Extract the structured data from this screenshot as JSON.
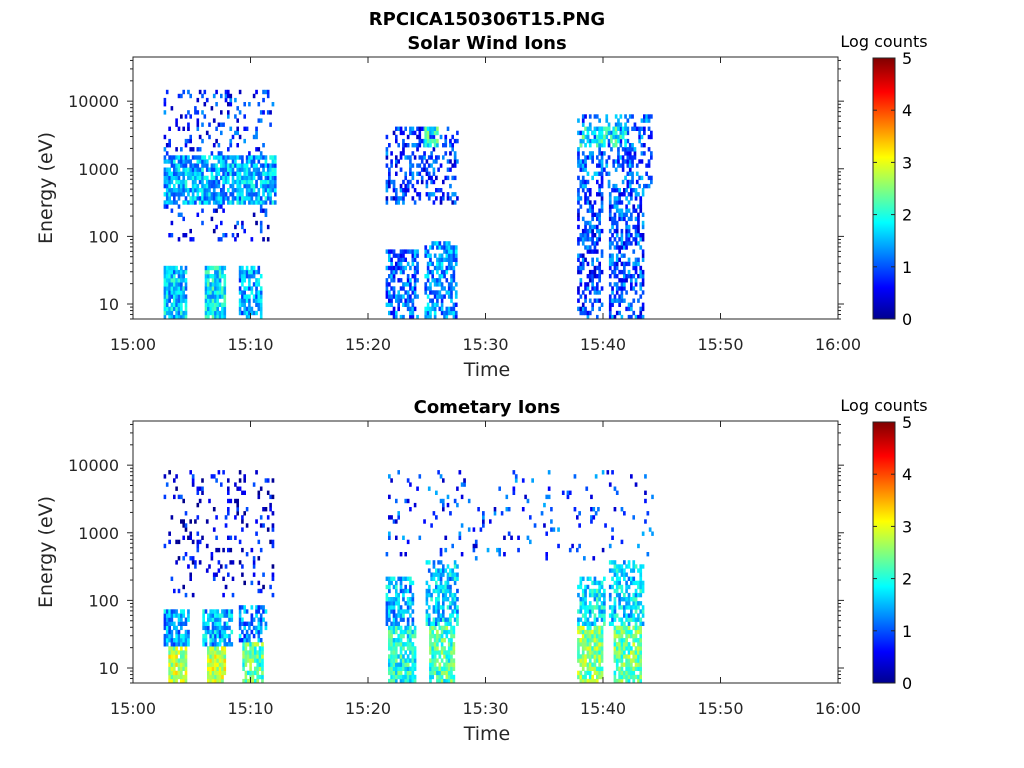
{
  "figure": {
    "title": "RPCICA150306T15.PNG"
  },
  "chart_data": [
    {
      "type": "heatmap",
      "title": "Solar Wind Ions",
      "xlabel": "Time",
      "ylabel": "Energy (eV)",
      "x_tick_labels": [
        "15:00",
        "15:10",
        "15:20",
        "15:30",
        "15:40",
        "15:50",
        "16:00"
      ],
      "x_range_minutes": [
        0,
        60
      ],
      "y_scale": "log",
      "y_tick_labels": [
        "10",
        "100",
        "1000",
        "10000"
      ],
      "y_ticks": [
        10,
        100,
        1000,
        10000
      ],
      "y_range": [
        6,
        45000
      ],
      "colorbar": {
        "label": "Log counts",
        "range": [
          0,
          5
        ],
        "ticks": [
          "0",
          "1",
          "2",
          "3",
          "4",
          "5"
        ],
        "colormap": "jet"
      },
      "grid": false,
      "blobs": [
        {
          "t0": 2.6,
          "t1": 4.6,
          "e0": 6,
          "e1": 35,
          "v": 1.6,
          "d": 0.9
        },
        {
          "t0": 6.1,
          "t1": 7.9,
          "e0": 6,
          "e1": 35,
          "v": 1.8,
          "d": 0.9
        },
        {
          "t0": 9.0,
          "t1": 10.8,
          "e0": 6,
          "e1": 35,
          "v": 1.4,
          "d": 0.7
        },
        {
          "t0": 2.6,
          "t1": 12.0,
          "e0": 300,
          "e1": 1500,
          "v": 1.5,
          "d": 0.8
        },
        {
          "t0": 2.6,
          "t1": 11.8,
          "e0": 1500,
          "e1": 15000,
          "v": 0.8,
          "d": 0.18
        },
        {
          "t0": 2.6,
          "t1": 11.8,
          "e0": 80,
          "e1": 300,
          "v": 0.7,
          "d": 0.12
        },
        {
          "t0": 21.5,
          "t1": 24.2,
          "e0": 6,
          "e1": 60,
          "v": 1.1,
          "d": 0.6
        },
        {
          "t0": 24.8,
          "t1": 27.5,
          "e0": 6,
          "e1": 80,
          "v": 1.3,
          "d": 0.6
        },
        {
          "t0": 21.5,
          "t1": 27.5,
          "e0": 300,
          "e1": 4000,
          "v": 0.9,
          "d": 0.35
        },
        {
          "t0": 24.8,
          "t1": 25.8,
          "e0": 2000,
          "e1": 4000,
          "v": 2.0,
          "d": 0.8
        },
        {
          "t0": 37.8,
          "t1": 40.0,
          "e0": 6,
          "e1": 500,
          "v": 0.9,
          "d": 0.5
        },
        {
          "t0": 40.5,
          "t1": 43.5,
          "e0": 6,
          "e1": 500,
          "v": 1.0,
          "d": 0.5
        },
        {
          "t0": 37.8,
          "t1": 44.2,
          "e0": 500,
          "e1": 6000,
          "v": 1.1,
          "d": 0.35
        },
        {
          "t0": 38.0,
          "t1": 42.0,
          "e0": 2000,
          "e1": 4000,
          "v": 2.0,
          "d": 0.6
        }
      ]
    },
    {
      "type": "heatmap",
      "title": "Cometary Ions",
      "xlabel": "Time",
      "ylabel": "Energy (eV)",
      "x_tick_labels": [
        "15:00",
        "15:10",
        "15:20",
        "15:30",
        "15:40",
        "15:50",
        "16:00"
      ],
      "x_range_minutes": [
        0,
        60
      ],
      "y_scale": "log",
      "y_tick_labels": [
        "10",
        "100",
        "1000",
        "10000"
      ],
      "y_ticks": [
        10,
        100,
        1000,
        10000
      ],
      "y_range": [
        6,
        45000
      ],
      "colorbar": {
        "label": "Log counts",
        "range": [
          0,
          5
        ],
        "ticks": [
          "0",
          "1",
          "2",
          "3",
          "4",
          "5"
        ],
        "colormap": "jet"
      },
      "grid": false,
      "blobs": [
        {
          "t0": 3.0,
          "t1": 4.6,
          "e0": 6,
          "e1": 20,
          "v": 2.8,
          "d": 0.95
        },
        {
          "t0": 2.6,
          "t1": 4.8,
          "e0": 20,
          "e1": 70,
          "v": 1.4,
          "d": 0.8
        },
        {
          "t0": 6.3,
          "t1": 7.9,
          "e0": 6,
          "e1": 20,
          "v": 2.8,
          "d": 0.95
        },
        {
          "t0": 5.9,
          "t1": 8.4,
          "e0": 20,
          "e1": 70,
          "v": 1.5,
          "d": 0.8
        },
        {
          "t0": 9.3,
          "t1": 10.9,
          "e0": 6,
          "e1": 25,
          "v": 2.3,
          "d": 0.85
        },
        {
          "t0": 9.0,
          "t1": 11.3,
          "e0": 25,
          "e1": 90,
          "v": 1.3,
          "d": 0.6
        },
        {
          "t0": 2.6,
          "t1": 11.8,
          "e0": 120,
          "e1": 8000,
          "v": 0.5,
          "d": 0.12
        },
        {
          "t0": 21.7,
          "t1": 23.9,
          "e0": 6,
          "e1": 40,
          "v": 2.0,
          "d": 0.85
        },
        {
          "t0": 21.5,
          "t1": 23.8,
          "e0": 40,
          "e1": 220,
          "v": 1.5,
          "d": 0.6
        },
        {
          "t0": 25.2,
          "t1": 27.2,
          "e0": 6,
          "e1": 40,
          "v": 2.2,
          "d": 0.85
        },
        {
          "t0": 24.9,
          "t1": 27.6,
          "e0": 40,
          "e1": 400,
          "v": 1.6,
          "d": 0.6
        },
        {
          "t0": 37.8,
          "t1": 40.0,
          "e0": 6,
          "e1": 40,
          "v": 2.5,
          "d": 0.85
        },
        {
          "t0": 37.8,
          "t1": 40.2,
          "e0": 40,
          "e1": 220,
          "v": 1.8,
          "d": 0.65
        },
        {
          "t0": 40.9,
          "t1": 43.2,
          "e0": 6,
          "e1": 40,
          "v": 2.4,
          "d": 0.85
        },
        {
          "t0": 40.5,
          "t1": 43.5,
          "e0": 40,
          "e1": 400,
          "v": 1.7,
          "d": 0.6
        },
        {
          "t0": 21.5,
          "t1": 44.2,
          "e0": 400,
          "e1": 8000,
          "v": 0.9,
          "d": 0.06
        }
      ]
    }
  ]
}
